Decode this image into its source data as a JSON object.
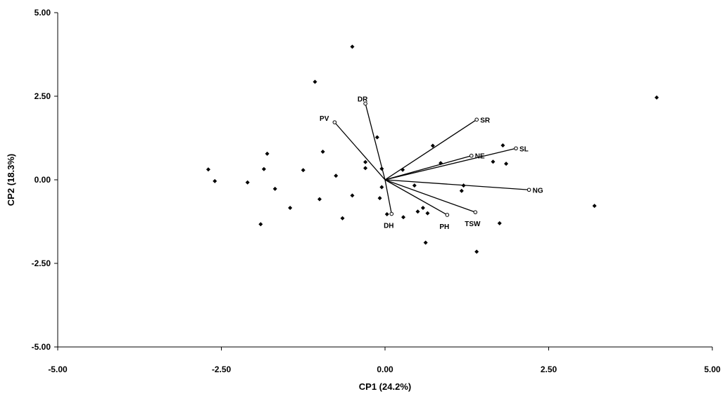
{
  "chart_data": {
    "type": "scatter",
    "title": "",
    "xlabel": "CP1 (24.2%)",
    "ylabel": "CP2 (18.3%)",
    "xlim": [
      -5,
      5
    ],
    "ylim": [
      -5,
      5
    ],
    "x_ticks": [
      "-5.00",
      "-2.50",
      "0.00",
      "2.50",
      "5.00"
    ],
    "y_ticks": [
      "5.00",
      "2.50",
      "0.00",
      "-2.50",
      "-5.00"
    ],
    "x_tick_values": [
      -5,
      -2.5,
      0,
      2.5,
      5
    ],
    "y_tick_values": [
      5,
      2.5,
      0,
      -2.5,
      -5
    ],
    "grid": false,
    "colors": {
      "points": "#000000",
      "vectors": "#000000",
      "axis": "#000000"
    },
    "points": [
      {
        "x": -0.5,
        "y": 3.98
      },
      {
        "x": -1.07,
        "y": 2.93
      },
      {
        "x": 4.15,
        "y": 2.46
      },
      {
        "x": -0.12,
        "y": 1.27
      },
      {
        "x": 0.73,
        "y": 1.02
      },
      {
        "x": 1.8,
        "y": 1.03
      },
      {
        "x": -0.95,
        "y": 0.84
      },
      {
        "x": -1.8,
        "y": 0.78
      },
      {
        "x": 1.65,
        "y": 0.54
      },
      {
        "x": 1.85,
        "y": 0.48
      },
      {
        "x": 0.85,
        "y": 0.5
      },
      {
        "x": -0.3,
        "y": 0.53
      },
      {
        "x": -0.3,
        "y": 0.35
      },
      {
        "x": -0.05,
        "y": 0.33
      },
      {
        "x": 0.27,
        "y": 0.3
      },
      {
        "x": -1.25,
        "y": 0.29
      },
      {
        "x": -2.7,
        "y": 0.31
      },
      {
        "x": -1.85,
        "y": 0.32
      },
      {
        "x": -0.75,
        "y": 0.12
      },
      {
        "x": -2.6,
        "y": -0.04
      },
      {
        "x": -2.1,
        "y": -0.08
      },
      {
        "x": 0.45,
        "y": -0.17
      },
      {
        "x": 1.2,
        "y": -0.17
      },
      {
        "x": -0.05,
        "y": -0.22
      },
      {
        "x": -1.68,
        "y": -0.27
      },
      {
        "x": 1.17,
        "y": -0.33
      },
      {
        "x": -0.5,
        "y": -0.47
      },
      {
        "x": -1.0,
        "y": -0.58
      },
      {
        "x": -0.08,
        "y": -0.55
      },
      {
        "x": -1.45,
        "y": -0.84
      },
      {
        "x": 0.58,
        "y": -0.84
      },
      {
        "x": 0.5,
        "y": -0.95
      },
      {
        "x": 0.65,
        "y": -1.0
      },
      {
        "x": 0.03,
        "y": -1.03
      },
      {
        "x": 0.28,
        "y": -1.12
      },
      {
        "x": -0.65,
        "y": -1.15
      },
      {
        "x": -1.9,
        "y": -1.33
      },
      {
        "x": 1.75,
        "y": -1.3
      },
      {
        "x": 3.2,
        "y": -0.78
      },
      {
        "x": 0.62,
        "y": -1.88
      },
      {
        "x": 1.4,
        "y": -2.15
      }
    ],
    "vectors": [
      {
        "name": "DR",
        "x": -0.3,
        "y": 2.28,
        "label_pos": "above"
      },
      {
        "name": "PV",
        "x": -0.77,
        "y": 1.72,
        "label_pos": "left"
      },
      {
        "name": "SR",
        "x": 1.4,
        "y": 1.8,
        "label_pos": "right"
      },
      {
        "name": "NE",
        "x": 1.32,
        "y": 0.72,
        "label_pos": "right"
      },
      {
        "name": "SL",
        "x": 2.0,
        "y": 0.94,
        "label_pos": "right"
      },
      {
        "name": "NG",
        "x": 2.2,
        "y": -0.3,
        "label_pos": "right"
      },
      {
        "name": "TSW",
        "x": 1.38,
        "y": -0.97,
        "label_pos": "below"
      },
      {
        "name": "PH",
        "x": 0.95,
        "y": -1.05,
        "label_pos": "below"
      },
      {
        "name": "DH",
        "x": 0.1,
        "y": -1.02,
        "label_pos": "below"
      }
    ]
  }
}
